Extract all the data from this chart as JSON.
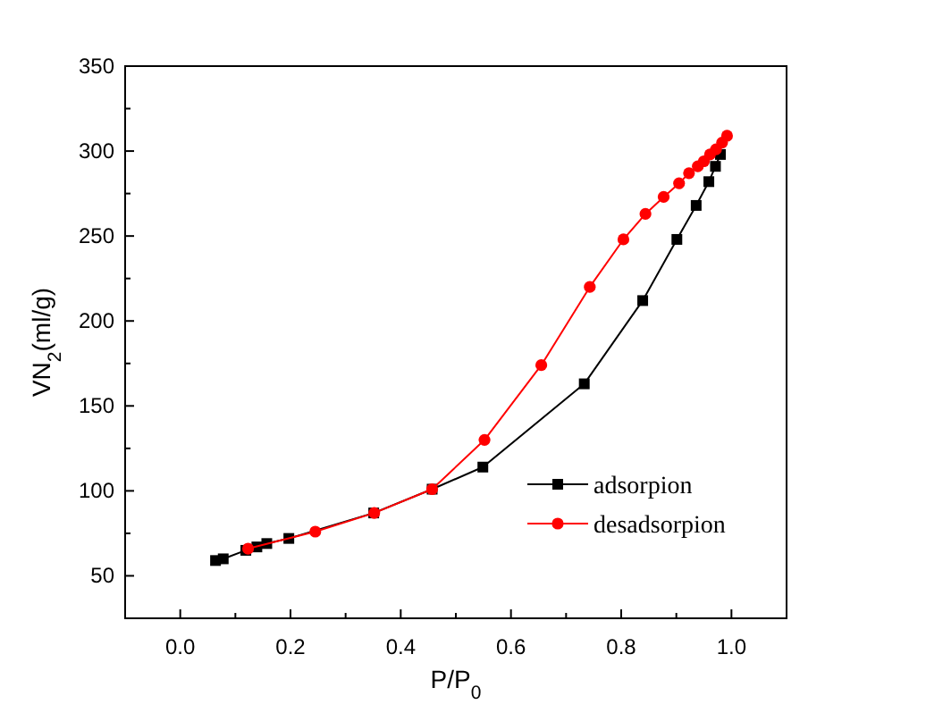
{
  "chart_data": {
    "type": "line",
    "xlabel": "P/P$_{0}$",
    "ylabel": "VN$_{2}$(ml/g)",
    "xlim": [
      -0.1,
      1.1
    ],
    "ylim": [
      25,
      350
    ],
    "xticks": [
      {
        "value": -0.1,
        "label": null
      },
      {
        "value": 0,
        "label": "0.0"
      },
      {
        "value": 0.1,
        "label": null
      },
      {
        "value": 0.2,
        "label": "0.2"
      },
      {
        "value": 0.3,
        "label": null
      },
      {
        "value": 0.4,
        "label": "0.4"
      },
      {
        "value": 0.5,
        "label": null
      },
      {
        "value": 0.6,
        "label": "0.6"
      },
      {
        "value": 0.7,
        "label": null
      },
      {
        "value": 0.8,
        "label": "0.8"
      },
      {
        "value": 0.9,
        "label": null
      },
      {
        "value": 1,
        "label": "1.0"
      }
    ],
    "yticks": [
      {
        "value": 25,
        "label": null
      },
      {
        "value": 50,
        "label": "50"
      },
      {
        "value": 75,
        "label": null
      },
      {
        "value": 100,
        "label": "100"
      },
      {
        "value": 125,
        "label": null
      },
      {
        "value": 150,
        "label": "150"
      },
      {
        "value": 175,
        "label": null
      },
      {
        "value": 200,
        "label": "200"
      },
      {
        "value": 225,
        "label": null
      },
      {
        "value": 250,
        "label": "250"
      },
      {
        "value": 275,
        "label": null
      },
      {
        "value": 300,
        "label": "300"
      },
      {
        "value": 325,
        "label": null
      },
      {
        "value": 350,
        "label": "350"
      }
    ],
    "grid": false,
    "legend": "bottom right",
    "line_style": "solid",
    "series": [
      {
        "name": "adsorpion",
        "color": "#000000",
        "marker": "square",
        "x": [
          0.064,
          0.078,
          0.119,
          0.139,
          0.157,
          0.197,
          0.351,
          0.457,
          0.549,
          0.733,
          0.839,
          0.901,
          0.936,
          0.959,
          0.971,
          0.98
        ],
        "values": [
          59,
          60,
          65,
          67,
          69,
          72,
          87,
          101,
          114,
          163,
          212,
          248,
          268,
          282,
          291,
          298
        ]
      },
      {
        "name": "desadsorpion",
        "color": "#ff0000",
        "marker": "circle",
        "x": [
          0.992,
          0.983,
          0.972,
          0.961,
          0.95,
          0.939,
          0.923,
          0.905,
          0.877,
          0.844,
          0.804,
          0.743,
          0.655,
          0.552,
          0.457,
          0.352,
          0.245,
          0.123
        ],
        "values": [
          309,
          305,
          301,
          298,
          294,
          291,
          287,
          281,
          273,
          263,
          248,
          220,
          174,
          130,
          101,
          87,
          76,
          66
        ]
      }
    ]
  }
}
